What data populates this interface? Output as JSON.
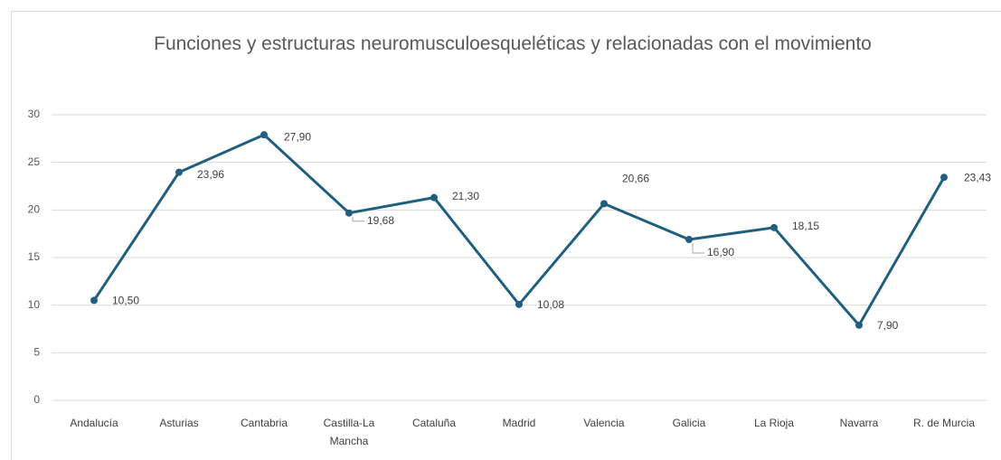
{
  "chart_data": {
    "type": "line",
    "title": "Funciones y estructuras neuromusculoesqueléticas y relacionadas con el movimiento",
    "categories": [
      "Andalucía",
      "Asturias",
      "Cantabria",
      "Castilla-La Mancha",
      "Cataluña",
      "Madrid",
      "Valencia",
      "Galicia",
      "La Rioja",
      "Navarra",
      "R. de Murcia"
    ],
    "values": [
      10.5,
      23.96,
      27.9,
      19.68,
      21.3,
      10.08,
      20.66,
      16.9,
      18.15,
      7.9,
      23.43
    ],
    "value_labels": [
      "10,50",
      "23,96",
      "27,90",
      "19,68",
      "21,30",
      "10,08",
      "20,66",
      "16,90",
      "18,15",
      "7,90",
      "23,43"
    ],
    "color": "#215f7e",
    "ylim": [
      0,
      30
    ],
    "yticks": [
      0,
      5,
      10,
      15,
      20,
      25,
      30
    ],
    "grid": true
  }
}
